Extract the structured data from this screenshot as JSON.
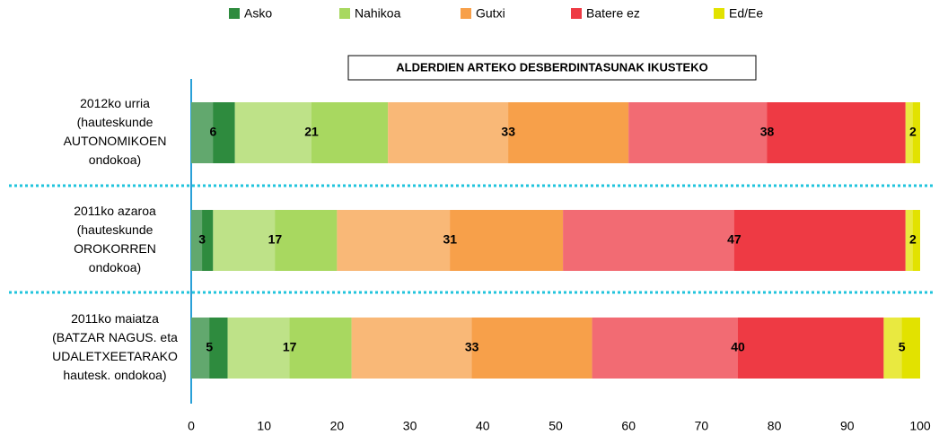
{
  "chart_data": {
    "type": "stacked-barh",
    "title": "ALDERDIEN ARTEKO DESBERDINTASUNAK IKUSTEKO",
    "categories": [
      [
        "2012ko urria",
        "(hauteskunde",
        "AUTONOMIKOEN",
        "ondokoa)"
      ],
      [
        "2011ko azaroa",
        "(hauteskunde",
        "OROKORREN",
        "ondokoa)"
      ],
      [
        "2011ko maiatza",
        "(BATZAR NAGUS. eta",
        "UDALETXEETARAKO",
        "hautesk. ondokoa)"
      ]
    ],
    "series": [
      {
        "name": "Asko",
        "color": "#2e8b3e",
        "values": [
          6,
          3,
          5
        ]
      },
      {
        "name": "Nahikoa",
        "color": "#a8d860",
        "values": [
          21,
          17,
          17
        ]
      },
      {
        "name": "Gutxi",
        "color": "#f7a04a",
        "values": [
          33,
          31,
          33
        ]
      },
      {
        "name": "Batere ez",
        "color": "#ee3a44",
        "values": [
          38,
          47,
          40
        ]
      },
      {
        "name": "Ed/Ee",
        "color": "#e2e200",
        "values": [
          2,
          2,
          5
        ]
      }
    ],
    "xlim": [
      0,
      100
    ],
    "xticks": [
      0,
      10,
      20,
      30,
      40,
      50,
      60,
      70,
      80,
      90,
      100
    ],
    "legend": "top"
  }
}
